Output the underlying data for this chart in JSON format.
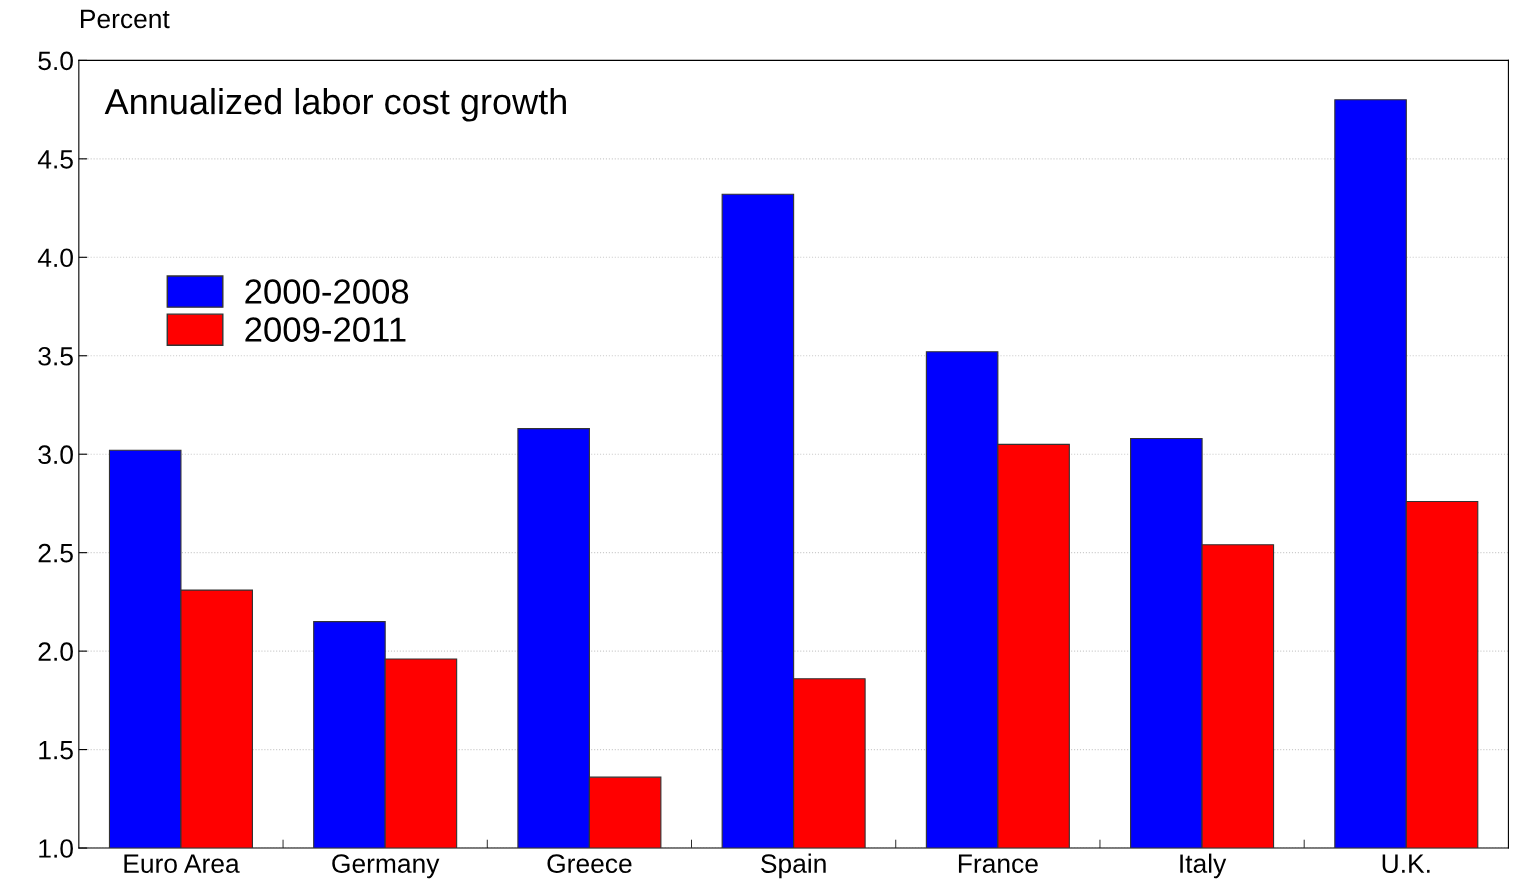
{
  "chart_data": {
    "type": "bar",
    "title": "Annualized labor cost growth",
    "ylabel": "Percent",
    "categories": [
      "Euro Area",
      "Germany",
      "Greece",
      "Spain",
      "France",
      "Italy",
      "U.K."
    ],
    "series": [
      {
        "name": "2000-2008",
        "color": "#0000ff",
        "values": [
          3.02,
          2.15,
          3.13,
          4.32,
          3.52,
          3.08,
          4.8
        ]
      },
      {
        "name": "2009-2011",
        "color": "#ff0000",
        "values": [
          2.31,
          1.96,
          1.36,
          1.86,
          3.05,
          2.54,
          2.76
        ]
      }
    ],
    "ylim": [
      1.0,
      5.0
    ],
    "yticks": [
      {
        "value": 1.0,
        "label": "1.0"
      },
      {
        "value": 1.5,
        "label": "1.5"
      },
      {
        "value": 2.0,
        "label": "2.0"
      },
      {
        "value": 2.5,
        "label": "2.5"
      },
      {
        "value": 3.0,
        "label": "3.0"
      },
      {
        "value": 3.5,
        "label": "3.5"
      },
      {
        "value": 4.0,
        "label": "4.0"
      },
      {
        "value": 4.5,
        "label": "4.5"
      },
      {
        "value": 5.0,
        "label": "5.0"
      }
    ],
    "grid": "y",
    "legend": "left"
  }
}
